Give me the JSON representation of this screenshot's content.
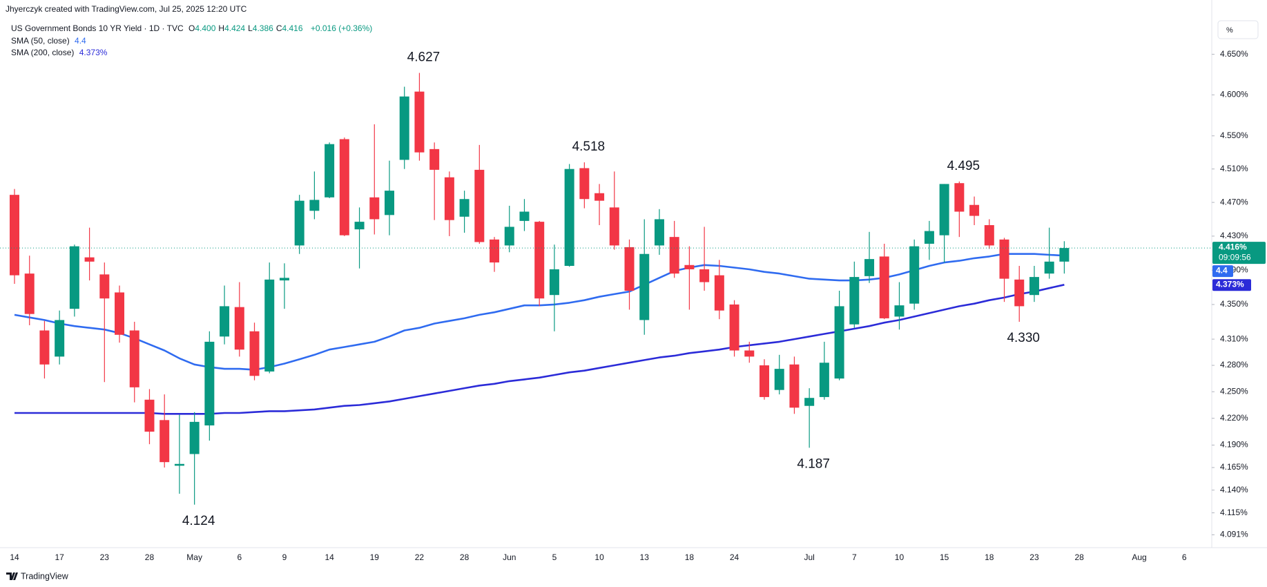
{
  "header": {
    "credit": "Jhyerczyk created with TradingView.com, Jul 25, 2025 12:20 UTC",
    "scale_button": "%",
    "brand": "TradingView"
  },
  "chart_data": {
    "type": "candlestick",
    "title": "US Government Bonds 10 YR Yield · 1D · TVC",
    "ohlc_legend": [
      {
        "key": "O",
        "value": "4.400"
      },
      {
        "key": "H",
        "value": "4.424"
      },
      {
        "key": "L",
        "value": "4.386"
      },
      {
        "key": "C",
        "value": "4.416"
      }
    ],
    "change": "+0.016 (+0.36%)",
    "last_price_label": "4.416%",
    "countdown": "09:09:56",
    "up_color": "#089981",
    "down_color": "#f23645",
    "log_scale": true,
    "grid": false,
    "categories": [
      "14",
      null,
      null,
      "17",
      null,
      null,
      "23",
      null,
      null,
      "28",
      null,
      null,
      "May",
      null,
      null,
      "6",
      null,
      null,
      "9",
      null,
      null,
      "14",
      null,
      null,
      "19",
      null,
      null,
      "22",
      null,
      null,
      "28",
      null,
      null,
      "Jun",
      null,
      null,
      "5",
      null,
      null,
      "10",
      null,
      null,
      "13",
      null,
      null,
      "18",
      null,
      null,
      "24",
      null,
      null,
      null,
      null,
      "Jul",
      null,
      null,
      "7",
      null,
      null,
      "10",
      null,
      null,
      "15",
      null,
      null,
      "18",
      null,
      null,
      "23",
      null,
      null,
      "28",
      null,
      null,
      null,
      "Aug",
      null,
      null,
      "6"
    ],
    "open": [
      4.479,
      4.386,
      4.32,
      4.29,
      4.345,
      4.405,
      4.385,
      4.364,
      4.32,
      4.241,
      4.218,
      4.167,
      4.18,
      4.212,
      4.313,
      4.347,
      4.319,
      4.273,
      4.378,
      4.419,
      4.46,
      4.476,
      4.546,
      4.438,
      4.476,
      4.455,
      4.521,
      4.604,
      4.534,
      4.5,
      4.453,
      4.509,
      4.426,
      4.419,
      4.448,
      4.447,
      4.361,
      4.395,
      4.511,
      4.481,
      4.464,
      4.417,
      4.332,
      4.419,
      4.429,
      4.396,
      4.391,
      4.384,
      4.35,
      4.297,
      4.28,
      4.252,
      4.281,
      4.234,
      4.244,
      4.265,
      4.327,
      4.383,
      4.406,
      4.336,
      4.351,
      4.421,
      4.431,
      4.493,
      4.467,
      4.443,
      4.426,
      4.379,
      4.361,
      4.386,
      4.4,
      null,
      null,
      null,
      null,
      null,
      null,
      null,
      null
    ],
    "high": [
      4.486,
      4.407,
      4.331,
      4.343,
      4.42,
      4.44,
      4.399,
      4.372,
      4.33,
      4.253,
      4.247,
      4.224,
      4.227,
      4.319,
      4.372,
      4.376,
      4.329,
      4.399,
      4.398,
      4.479,
      4.507,
      4.542,
      4.548,
      4.464,
      4.564,
      4.52,
      4.61,
      4.627,
      4.542,
      4.507,
      4.484,
      4.539,
      4.429,
      4.466,
      4.474,
      4.448,
      4.42,
      4.516,
      4.518,
      4.492,
      4.507,
      4.426,
      4.45,
      4.462,
      4.448,
      4.418,
      4.441,
      4.402,
      4.355,
      4.307,
      4.287,
      4.292,
      4.29,
      4.254,
      4.307,
      4.366,
      4.4,
      4.435,
      4.421,
      4.376,
      4.426,
      4.448,
      4.492,
      4.495,
      4.477,
      4.45,
      4.428,
      4.395,
      4.395,
      4.44,
      4.424,
      null,
      null,
      null,
      null,
      null,
      null,
      null,
      null
    ],
    "low": [
      4.374,
      4.326,
      4.265,
      4.281,
      4.336,
      4.378,
      4.261,
      4.306,
      4.238,
      4.191,
      4.165,
      4.136,
      4.124,
      4.195,
      4.304,
      4.29,
      4.263,
      4.271,
      4.345,
      4.409,
      4.45,
      4.475,
      4.43,
      4.392,
      4.432,
      4.431,
      4.51,
      4.52,
      4.449,
      4.43,
      4.434,
      4.421,
      4.388,
      4.411,
      4.436,
      4.348,
      4.319,
      4.394,
      4.463,
      4.443,
      4.414,
      4.344,
      4.315,
      4.408,
      4.381,
      4.344,
      4.366,
      4.333,
      4.29,
      4.283,
      4.241,
      4.247,
      4.225,
      4.187,
      4.241,
      4.263,
      4.323,
      4.375,
      4.333,
      4.321,
      4.344,
      4.402,
      4.399,
      4.429,
      4.443,
      4.415,
      4.353,
      4.33,
      4.353,
      4.38,
      4.386,
      null,
      null,
      null,
      null,
      null,
      null,
      null,
      null
    ],
    "close": [
      4.384,
      4.339,
      4.281,
      4.332,
      4.418,
      4.4,
      4.357,
      4.315,
      4.255,
      4.205,
      4.171,
      4.169,
      4.216,
      4.307,
      4.348,
      4.298,
      4.268,
      4.379,
      4.381,
      4.472,
      4.473,
      4.54,
      4.431,
      4.447,
      4.45,
      4.484,
      4.598,
      4.53,
      4.509,
      4.449,
      4.474,
      4.423,
      4.399,
      4.441,
      4.459,
      4.357,
      4.391,
      4.51,
      4.474,
      4.472,
      4.419,
      4.366,
      4.409,
      4.45,
      4.386,
      4.391,
      4.376,
      4.343,
      4.297,
      4.29,
      4.244,
      4.276,
      4.232,
      4.243,
      4.283,
      4.348,
      4.382,
      4.403,
      4.334,
      4.349,
      4.418,
      4.436,
      4.492,
      4.459,
      4.454,
      4.419,
      4.38,
      4.348,
      4.382,
      4.4,
      4.416,
      null,
      null,
      null,
      null,
      null,
      null,
      null,
      null
    ],
    "series": [
      {
        "name": "SMA (50, close)",
        "color": "#2f6bf0",
        "legend_value": "4.4",
        "values": [
          4.338,
          4.335,
          4.332,
          4.328,
          4.325,
          4.323,
          4.321,
          4.317,
          4.311,
          4.304,
          4.297,
          4.288,
          4.281,
          4.278,
          4.276,
          4.276,
          4.275,
          4.278,
          4.282,
          4.287,
          4.292,
          4.298,
          4.301,
          4.304,
          4.307,
          4.313,
          4.32,
          4.323,
          4.328,
          4.331,
          4.334,
          4.338,
          4.341,
          4.345,
          4.349,
          4.349,
          4.35,
          4.352,
          4.355,
          4.359,
          4.362,
          4.365,
          4.373,
          4.381,
          4.389,
          4.393,
          4.396,
          4.395,
          4.393,
          4.391,
          4.388,
          4.386,
          4.383,
          4.38,
          4.379,
          4.378,
          4.378,
          4.379,
          4.381,
          4.385,
          4.39,
          4.395,
          4.399,
          4.401,
          4.404,
          4.406,
          4.409,
          4.409,
          4.409,
          4.408,
          4.407,
          null,
          null,
          null,
          null,
          null,
          null,
          null,
          null
        ]
      },
      {
        "name": "SMA (200, close)",
        "color": "#2b2bd8",
        "legend_value": "4.373%",
        "values": [
          4.226,
          4.226,
          4.226,
          4.226,
          4.226,
          4.226,
          4.226,
          4.226,
          4.226,
          4.226,
          4.225,
          4.225,
          4.225,
          4.225,
          4.226,
          4.226,
          4.227,
          4.228,
          4.228,
          4.229,
          4.23,
          4.232,
          4.234,
          4.235,
          4.237,
          4.239,
          4.242,
          4.245,
          4.248,
          4.251,
          4.254,
          4.257,
          4.259,
          4.262,
          4.264,
          4.266,
          4.269,
          4.272,
          4.274,
          4.277,
          4.28,
          4.283,
          4.286,
          4.289,
          4.291,
          4.294,
          4.296,
          4.298,
          4.301,
          4.303,
          4.305,
          4.307,
          4.31,
          4.313,
          4.316,
          4.319,
          4.322,
          4.325,
          4.329,
          4.332,
          4.336,
          4.34,
          4.344,
          4.348,
          4.351,
          4.355,
          4.358,
          4.362,
          4.365,
          4.369,
          4.373,
          null,
          null,
          null,
          null,
          null,
          null,
          null,
          null
        ]
      }
    ],
    "annotations": [
      "4.627",
      "4.518",
      "4.495",
      "4.330",
      "4.187",
      "4.124"
    ],
    "ylim": [
      4.077,
      4.697
    ],
    "yticks": [
      {
        "value": 4.65,
        "label": "4.650%"
      },
      {
        "value": 4.6,
        "label": "4.600%"
      },
      {
        "value": 4.55,
        "label": "4.550%"
      },
      {
        "value": 4.51,
        "label": "4.510%"
      },
      {
        "value": 4.47,
        "label": "4.470%"
      },
      {
        "value": 4.43,
        "label": "4.430%"
      },
      {
        "value": 4.39,
        "label": "4.390%"
      },
      {
        "value": 4.35,
        "label": "4.350%"
      },
      {
        "value": 4.31,
        "label": "4.310%"
      },
      {
        "value": 4.28,
        "label": "4.280%"
      },
      {
        "value": 4.25,
        "label": "4.250%"
      },
      {
        "value": 4.22,
        "label": "4.220%"
      },
      {
        "value": 4.19,
        "label": "4.190%"
      },
      {
        "value": 4.165,
        "label": "4.165%"
      },
      {
        "value": 4.14,
        "label": "4.140%"
      },
      {
        "value": 4.115,
        "label": "4.115%"
      },
      {
        "value": 4.091,
        "label": "4.091%"
      }
    ]
  }
}
